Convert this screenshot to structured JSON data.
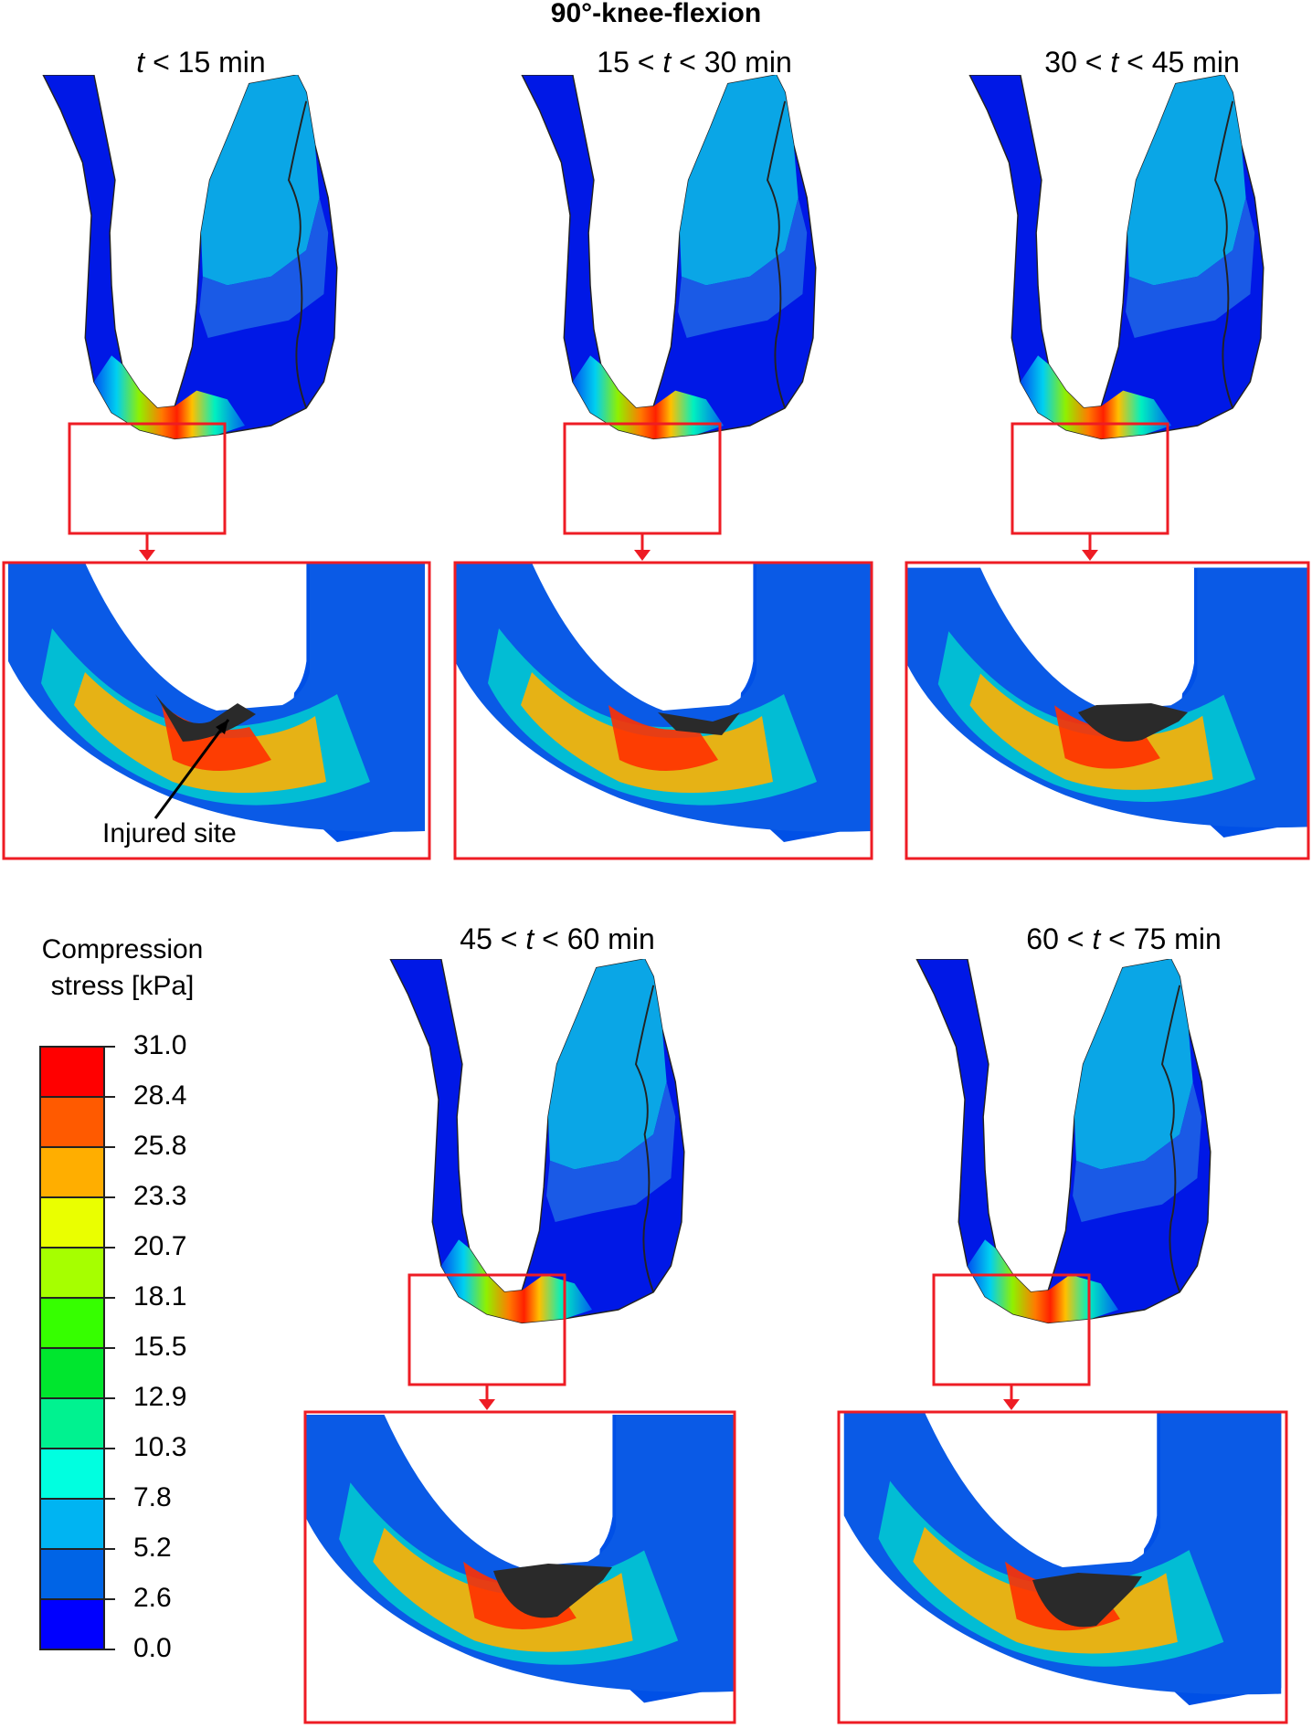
{
  "title": "90°-knee-flexion",
  "panels": [
    {
      "pre": "",
      "t": "t",
      "post": " < 15 min"
    },
    {
      "pre": "15 < ",
      "t": "t",
      "post": " < 30 min"
    },
    {
      "pre": "30 < ",
      "t": "t",
      "post": " < 45 min"
    },
    {
      "pre": "45 < ",
      "t": "t",
      "post": " < 60 min"
    },
    {
      "pre": "60 < ",
      "t": "t",
      "post": " < 75 min"
    }
  ],
  "annotation": "Injured site",
  "legend": {
    "title_line1": "Compression",
    "title_line2": "stress [kPa]",
    "ticks": [
      "31.0",
      "28.4",
      "25.8",
      "23.3",
      "20.7",
      "18.1",
      "15.5",
      "12.9",
      "10.3",
      "7.8",
      "5.2",
      "2.6",
      "0.0"
    ],
    "colors": [
      "#ff0000",
      "#ff5a00",
      "#ffae00",
      "#eaff00",
      "#a6ff00",
      "#36ff00",
      "#00e62e",
      "#00f290",
      "#00ffe0",
      "#00b4f2",
      "#0064e6",
      "#0000ff"
    ]
  },
  "colors": {
    "highlight": "#ee1c24",
    "injured": "#2a2a2a"
  }
}
